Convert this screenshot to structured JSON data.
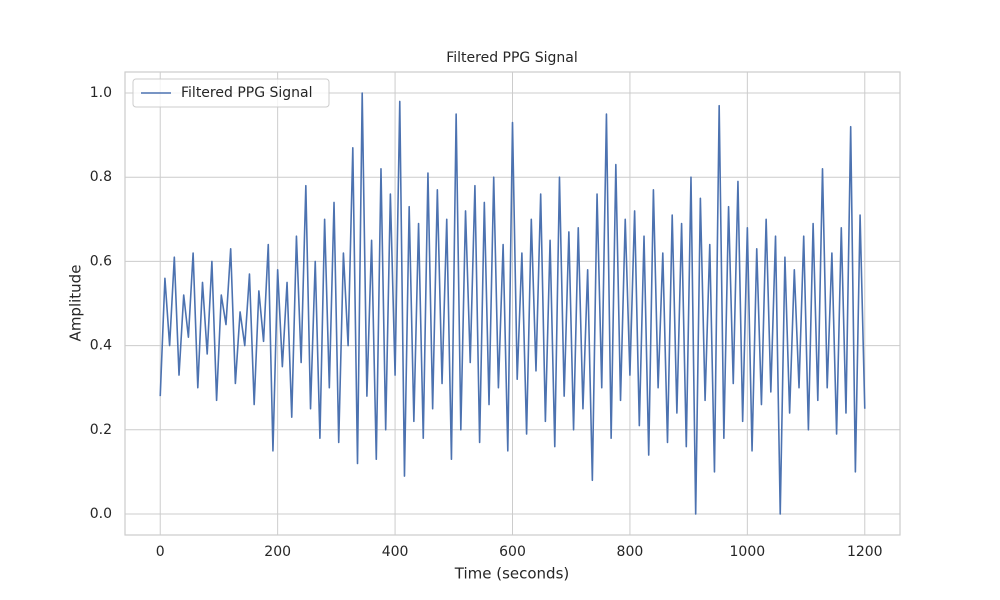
{
  "chart_data": {
    "type": "line",
    "title": "Filtered PPG Signal",
    "xlabel": "Time (seconds)",
    "ylabel": "Amplitude",
    "x": [
      0,
      8,
      16,
      24,
      32,
      40,
      48,
      56,
      64,
      72,
      80,
      88,
      96,
      104,
      112,
      120,
      128,
      136,
      144,
      152,
      160,
      168,
      176,
      184,
      192,
      200,
      208,
      216,
      224,
      232,
      240,
      248,
      256,
      264,
      272,
      280,
      288,
      296,
      304,
      312,
      320,
      328,
      336,
      344,
      352,
      360,
      368,
      376,
      384,
      392,
      400,
      408,
      416,
      424,
      432,
      440,
      448,
      456,
      464,
      472,
      480,
      488,
      496,
      504,
      512,
      520,
      528,
      536,
      544,
      552,
      560,
      568,
      576,
      584,
      592,
      600,
      608,
      616,
      624,
      632,
      640,
      648,
      656,
      664,
      672,
      680,
      688,
      696,
      704,
      712,
      720,
      728,
      736,
      744,
      752,
      760,
      768,
      776,
      784,
      792,
      800,
      808,
      816,
      824,
      832,
      840,
      848,
      856,
      864,
      872,
      880,
      888,
      896,
      904,
      912,
      920,
      928,
      936,
      944,
      952,
      960,
      968,
      976,
      984,
      992,
      1000,
      1008,
      1016,
      1024,
      1032,
      1040,
      1048,
      1056,
      1064,
      1072,
      1080,
      1088,
      1096,
      1104,
      1112,
      1120,
      1128,
      1136,
      1144,
      1152,
      1160,
      1168,
      1176,
      1184,
      1192,
      1200
    ],
    "series": [
      {
        "name": "Filtered PPG Signal",
        "color": "#4c72b0",
        "values": [
          0.28,
          0.56,
          0.4,
          0.61,
          0.33,
          0.52,
          0.42,
          0.62,
          0.3,
          0.55,
          0.38,
          0.6,
          0.27,
          0.52,
          0.45,
          0.63,
          0.31,
          0.48,
          0.4,
          0.57,
          0.26,
          0.53,
          0.41,
          0.64,
          0.15,
          0.58,
          0.35,
          0.55,
          0.23,
          0.66,
          0.36,
          0.78,
          0.25,
          0.6,
          0.18,
          0.7,
          0.3,
          0.74,
          0.17,
          0.62,
          0.4,
          0.87,
          0.12,
          1.0,
          0.28,
          0.65,
          0.13,
          0.82,
          0.2,
          0.76,
          0.33,
          0.98,
          0.09,
          0.73,
          0.22,
          0.69,
          0.18,
          0.81,
          0.25,
          0.77,
          0.31,
          0.7,
          0.13,
          0.95,
          0.2,
          0.72,
          0.36,
          0.78,
          0.17,
          0.74,
          0.26,
          0.8,
          0.3,
          0.64,
          0.15,
          0.93,
          0.32,
          0.62,
          0.19,
          0.7,
          0.34,
          0.76,
          0.22,
          0.65,
          0.16,
          0.8,
          0.28,
          0.67,
          0.2,
          0.68,
          0.25,
          0.58,
          0.08,
          0.76,
          0.3,
          0.95,
          0.18,
          0.83,
          0.27,
          0.7,
          0.33,
          0.72,
          0.21,
          0.66,
          0.14,
          0.77,
          0.3,
          0.62,
          0.17,
          0.71,
          0.24,
          0.69,
          0.16,
          0.8,
          0.0,
          0.75,
          0.27,
          0.64,
          0.1,
          0.97,
          0.18,
          0.73,
          0.31,
          0.79,
          0.22,
          0.68,
          0.15,
          0.63,
          0.26,
          0.7,
          0.29,
          0.66,
          0.0,
          0.61,
          0.24,
          0.58,
          0.3,
          0.66,
          0.2,
          0.69,
          0.27,
          0.82,
          0.3,
          0.62,
          0.19,
          0.68,
          0.24,
          0.92,
          0.1,
          0.71,
          0.25
        ]
      }
    ],
    "xlim": [
      -60,
      1260
    ],
    "ylim": [
      -0.05,
      1.05
    ],
    "xticks": [
      0,
      200,
      400,
      600,
      800,
      1000,
      1200
    ],
    "yticks": [
      {
        "value": 0,
        "label": "0.0"
      },
      {
        "value": 0.2,
        "label": "0.2"
      },
      {
        "value": 0.4,
        "label": "0.4"
      },
      {
        "value": 0.6,
        "label": "0.6"
      },
      {
        "value": 0.8,
        "label": "0.8"
      },
      {
        "value": 1,
        "label": "1.0"
      }
    ],
    "grid": true,
    "legend": "upper left"
  }
}
